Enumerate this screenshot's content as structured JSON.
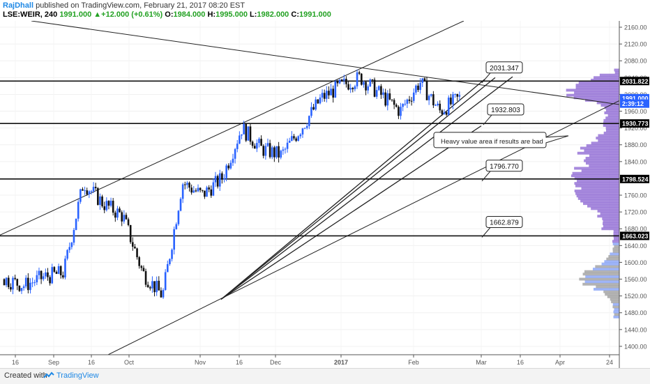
{
  "header": {
    "user": "RajDhall",
    "published_text": "published on TradingView.com, February 21, 2017 08:20 EST",
    "symbol": "LSE:WEIR, 240",
    "last": "1991.000",
    "change": "▲+12.000 (+0.61%)",
    "o_label": "O:",
    "o_value": "1984.000",
    "h_label": "H:",
    "h_value": "1995.000",
    "l_label": "L:",
    "l_value": "1982.000",
    "c_label": "C:",
    "c_value": "1991.000"
  },
  "footer": {
    "created_with": "Created with",
    "brand": "TradingView"
  },
  "colors": {
    "bull": "#2962ff",
    "bear": "#111111",
    "profile_upper": "#8a63d2",
    "profile_lower_a": "#7f9cf5",
    "profile_lower_b": "#999999",
    "label_bg": "#000000"
  },
  "chart_data": {
    "type": "candlestick",
    "ylim": [
      1380,
      2175
    ],
    "y_ticks": [
      1400,
      1440,
      1480,
      1520,
      1560,
      1600,
      1640,
      1680,
      1720,
      1760,
      1800,
      1840,
      1880,
      1920,
      1960,
      2000,
      2040,
      2080,
      2120,
      2160
    ],
    "x_ticks": [
      "16",
      "Sep",
      "16",
      "Oct",
      "Nov",
      "16",
      "Dec",
      "2017",
      "Feb",
      "Mar",
      "16",
      "Apr",
      "24"
    ],
    "path_points": [
      [
        "start",
        1560
      ],
      [
        "Sep",
        1545
      ],
      [
        "Sep 16",
        1565
      ],
      [
        "late Sep",
        1575
      ],
      [
        "Oct",
        1790
      ],
      [
        "mid Oct",
        1740
      ],
      [
        "Nov",
        1710
      ],
      [
        "Nov 5",
        1575
      ],
      [
        "Nov 9",
        1520
      ],
      [
        "Nov 10",
        1790
      ],
      [
        "Nov 20",
        1760
      ],
      [
        "Dec",
        1800
      ],
      [
        "Dec 5",
        1920
      ],
      [
        "Dec 10",
        1870
      ],
      [
        "Dec 20",
        1855
      ],
      [
        "2017",
        1920
      ],
      [
        "early Jan",
        1990
      ],
      [
        "mid Jan",
        2020
      ],
      [
        "late Jan",
        2040
      ],
      [
        "Feb",
        2000
      ],
      [
        "Feb 10",
        1960
      ],
      [
        "Feb 14",
        2030
      ],
      [
        "Feb 18",
        1960
      ],
      [
        "Feb 21",
        1991
      ]
    ],
    "horizontal_levels": [
      2031.822,
      1930.773,
      1798.524,
      1663.023
    ],
    "axis_labels": [
      {
        "value": 2031.822,
        "text": "2031.822",
        "style": "level"
      },
      {
        "value": 1991.0,
        "text": "1991.000",
        "style": "price"
      },
      {
        "value": 1978.0,
        "text": "2:39:12",
        "style": "timer"
      },
      {
        "value": 1930.773,
        "text": "1930.773",
        "style": "level"
      },
      {
        "value": 1798.524,
        "text": "1798.524",
        "style": "level"
      },
      {
        "value": 1663.023,
        "text": "1663.023",
        "style": "level"
      }
    ],
    "callouts": [
      "2031.347",
      "1932.803",
      "1796.770",
      "1662.879"
    ],
    "annotation": "Heavy value area if results are bad",
    "trendline_anchor": 1512
  }
}
